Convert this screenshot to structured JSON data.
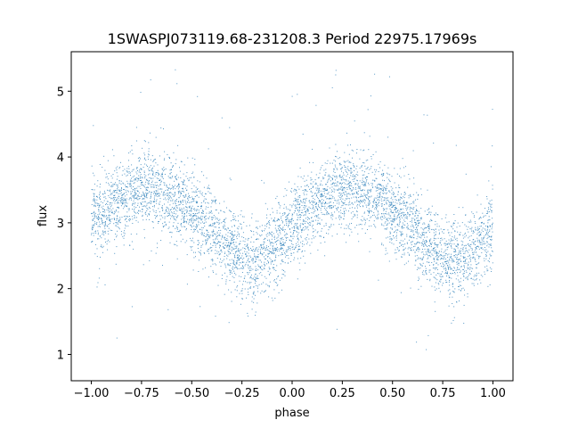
{
  "chart_data": {
    "type": "scatter",
    "title": "1SWASPJ073119.68-231208.3 Period 22975.17969s",
    "xlabel": "phase",
    "ylabel": "flux",
    "xlim": [
      -1.1,
      1.1
    ],
    "ylim": [
      0.6,
      5.6
    ],
    "x_ticks": [
      -1.0,
      -0.75,
      -0.5,
      -0.25,
      0.0,
      0.25,
      0.5,
      0.75,
      1.0
    ],
    "x_tick_labels": [
      "−1.00",
      "−0.75",
      "−0.50",
      "−0.25",
      "0.00",
      "0.25",
      "0.50",
      "0.75",
      "1.00"
    ],
    "y_ticks": [
      1,
      2,
      3,
      4,
      5
    ],
    "y_tick_labels": [
      "1",
      "2",
      "3",
      "4",
      "5"
    ],
    "grid": false,
    "legend": "none",
    "point_color": "#1f77b4",
    "series": [
      {
        "x": [
          -1.0,
          -0.95,
          -0.9,
          -0.85,
          -0.8,
          -0.75,
          -0.7,
          -0.65,
          -0.6,
          -0.55,
          -0.5,
          -0.45,
          -0.4,
          -0.35,
          -0.3,
          -0.25,
          -0.2,
          -0.15,
          -0.1,
          -0.05,
          0.0,
          0.05,
          0.1,
          0.15,
          0.2,
          0.25,
          0.3,
          0.35,
          0.4,
          0.45,
          0.5,
          0.55,
          0.6,
          0.65,
          0.7,
          0.75,
          0.8,
          0.85,
          0.9,
          0.95,
          1.0
        ],
        "y": [
          3.05,
          3.15,
          3.25,
          3.35,
          3.45,
          3.5,
          3.55,
          3.5,
          3.4,
          3.3,
          3.2,
          3.05,
          2.9,
          2.75,
          2.6,
          2.45,
          2.4,
          2.45,
          2.6,
          2.8,
          2.95,
          3.1,
          3.25,
          3.35,
          3.45,
          3.5,
          3.5,
          3.45,
          3.4,
          3.3,
          3.2,
          3.05,
          2.9,
          2.75,
          2.6,
          2.45,
          2.4,
          2.45,
          2.6,
          2.75,
          2.95
        ]
      }
    ]
  }
}
